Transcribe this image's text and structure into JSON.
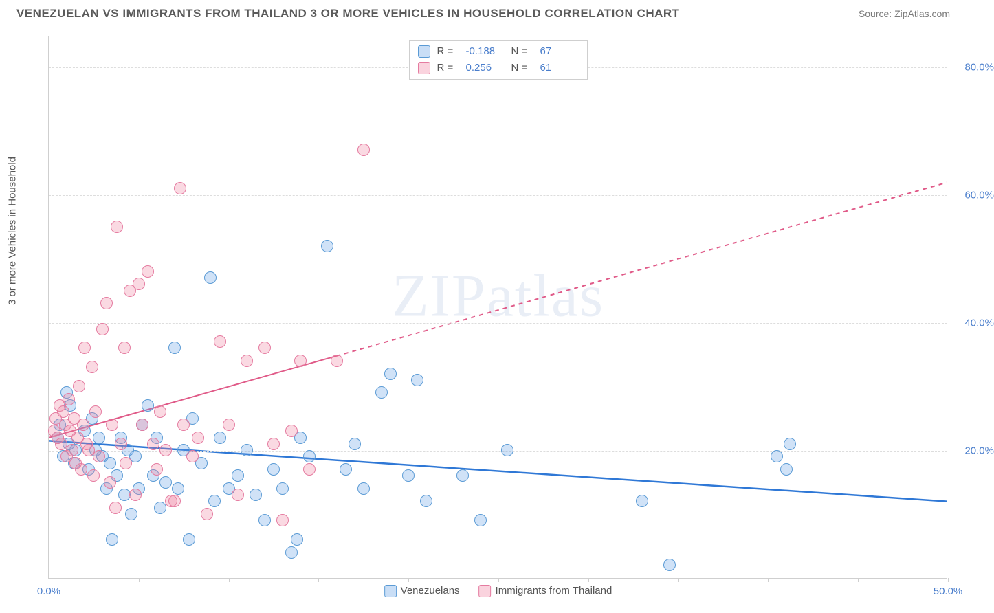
{
  "header": {
    "title": "VENEZUELAN VS IMMIGRANTS FROM THAILAND 3 OR MORE VEHICLES IN HOUSEHOLD CORRELATION CHART",
    "source": "Source: ZipAtlas.com"
  },
  "chart": {
    "type": "scatter",
    "ylabel": "3 or more Vehicles in Household",
    "watermark": "ZIPatlas",
    "background_color": "#ffffff",
    "grid_color": "#dddddd",
    "axis_color": "#cfcfcf",
    "xlim": [
      0,
      50
    ],
    "ylim": [
      0,
      85
    ],
    "xticks": [
      0,
      5,
      10,
      15,
      20,
      25,
      30,
      35,
      40,
      45,
      50
    ],
    "xtick_labels": {
      "0": "0.0%",
      "50": "50.0%"
    },
    "yticks": [
      20,
      40,
      60,
      80
    ],
    "ytick_labels": [
      "20.0%",
      "40.0%",
      "60.0%",
      "80.0%"
    ],
    "tick_color": "#4a7ecc",
    "label_fontsize": 15,
    "marker_radius": 9,
    "legend_top": {
      "rows": [
        {
          "swatch_fill": "rgba(100,160,230,0.35)",
          "swatch_border": "#5b9bd5",
          "r_label": "R =",
          "r_value": "-0.188",
          "n_label": "N =",
          "n_value": "67"
        },
        {
          "swatch_fill": "rgba(240,130,160,0.35)",
          "swatch_border": "#e57ba0",
          "r_label": "R =",
          "r_value": "0.256",
          "n_label": "N =",
          "n_value": "61"
        }
      ]
    },
    "legend_bottom": [
      {
        "swatch_fill": "rgba(100,160,230,0.35)",
        "swatch_border": "#5b9bd5",
        "label": "Venezuelans"
      },
      {
        "swatch_fill": "rgba(240,130,160,0.35)",
        "swatch_border": "#e57ba0",
        "label": "Immigrants from Thailand"
      }
    ],
    "series": [
      {
        "name": "Venezuelans",
        "color_fill": "rgba(100,160,230,0.30)",
        "color_border": "#5b9bd5",
        "trend": {
          "x1": 0,
          "y1": 21.5,
          "x2": 50,
          "y2": 12.0,
          "color": "#2f78d6",
          "width": 2.5,
          "dash_from_x": null
        },
        "points": [
          [
            0.5,
            22
          ],
          [
            0.6,
            24
          ],
          [
            0.8,
            19
          ],
          [
            1.0,
            29
          ],
          [
            1.1,
            21
          ],
          [
            1.2,
            27
          ],
          [
            1.4,
            18
          ],
          [
            1.5,
            20
          ],
          [
            2.0,
            23
          ],
          [
            2.2,
            17
          ],
          [
            2.4,
            25
          ],
          [
            2.6,
            20
          ],
          [
            2.8,
            22
          ],
          [
            3.0,
            19
          ],
          [
            3.2,
            14
          ],
          [
            3.4,
            18
          ],
          [
            3.5,
            6
          ],
          [
            3.8,
            16
          ],
          [
            4.0,
            22
          ],
          [
            4.2,
            13
          ],
          [
            4.4,
            20
          ],
          [
            4.6,
            10
          ],
          [
            4.8,
            19
          ],
          [
            5.0,
            14
          ],
          [
            5.2,
            24
          ],
          [
            5.5,
            27
          ],
          [
            5.8,
            16
          ],
          [
            6.0,
            22
          ],
          [
            6.2,
            11
          ],
          [
            6.5,
            15
          ],
          [
            7.0,
            36
          ],
          [
            7.2,
            14
          ],
          [
            7.5,
            20
          ],
          [
            7.8,
            6
          ],
          [
            8.0,
            25
          ],
          [
            8.5,
            18
          ],
          [
            9.0,
            47
          ],
          [
            9.2,
            12
          ],
          [
            9.5,
            22
          ],
          [
            10.0,
            14
          ],
          [
            10.5,
            16
          ],
          [
            11.0,
            20
          ],
          [
            11.5,
            13
          ],
          [
            12.0,
            9
          ],
          [
            12.5,
            17
          ],
          [
            13.0,
            14
          ],
          [
            13.5,
            4
          ],
          [
            14.0,
            22
          ],
          [
            14.5,
            19
          ],
          [
            15.5,
            52
          ],
          [
            16.5,
            17
          ],
          [
            17.0,
            21
          ],
          [
            17.5,
            14
          ],
          [
            18.5,
            29
          ],
          [
            19.0,
            32
          ],
          [
            20.0,
            16
          ],
          [
            20.5,
            31
          ],
          [
            21.0,
            12
          ],
          [
            24.0,
            9
          ],
          [
            25.5,
            20
          ],
          [
            33.0,
            12
          ],
          [
            34.5,
            2
          ],
          [
            40.5,
            19
          ],
          [
            41.0,
            17
          ],
          [
            41.2,
            21
          ],
          [
            23.0,
            16
          ],
          [
            13.8,
            6
          ]
        ]
      },
      {
        "name": "Immigrants from Thailand",
        "color_fill": "rgba(240,130,160,0.30)",
        "color_border": "#e57ba0",
        "trend": {
          "x1": 0,
          "y1": 22.0,
          "x2": 50,
          "y2": 62.0,
          "color": "#e05a88",
          "width": 2,
          "dash_from_x": 16
        },
        "points": [
          [
            0.3,
            23
          ],
          [
            0.4,
            25
          ],
          [
            0.5,
            22
          ],
          [
            0.6,
            27
          ],
          [
            0.7,
            21
          ],
          [
            0.8,
            26
          ],
          [
            0.9,
            24
          ],
          [
            1.0,
            19
          ],
          [
            1.1,
            28
          ],
          [
            1.2,
            23
          ],
          [
            1.3,
            20
          ],
          [
            1.4,
            25
          ],
          [
            1.5,
            18
          ],
          [
            1.6,
            22
          ],
          [
            1.7,
            30
          ],
          [
            1.8,
            17
          ],
          [
            1.9,
            24
          ],
          [
            2.0,
            36
          ],
          [
            2.1,
            21
          ],
          [
            2.2,
            20
          ],
          [
            2.4,
            33
          ],
          [
            2.5,
            16
          ],
          [
            2.6,
            26
          ],
          [
            2.8,
            19
          ],
          [
            3.0,
            39
          ],
          [
            3.2,
            43
          ],
          [
            3.4,
            15
          ],
          [
            3.5,
            24
          ],
          [
            3.7,
            11
          ],
          [
            3.8,
            55
          ],
          [
            4.0,
            21
          ],
          [
            4.2,
            36
          ],
          [
            4.3,
            18
          ],
          [
            4.5,
            45
          ],
          [
            4.8,
            13
          ],
          [
            5.0,
            46
          ],
          [
            5.2,
            24
          ],
          [
            5.5,
            48
          ],
          [
            5.8,
            21
          ],
          [
            6.0,
            17
          ],
          [
            6.2,
            26
          ],
          [
            6.5,
            20
          ],
          [
            7.0,
            12
          ],
          [
            7.3,
            61
          ],
          [
            7.5,
            24
          ],
          [
            8.0,
            19
          ],
          [
            8.3,
            22
          ],
          [
            8.8,
            10
          ],
          [
            9.5,
            37
          ],
          [
            10.0,
            24
          ],
          [
            10.5,
            13
          ],
          [
            11.0,
            34
          ],
          [
            12.0,
            36
          ],
          [
            12.5,
            21
          ],
          [
            13.5,
            23
          ],
          [
            14.0,
            34
          ],
          [
            14.5,
            17
          ],
          [
            16.0,
            34
          ],
          [
            17.5,
            67
          ],
          [
            13.0,
            9
          ],
          [
            6.8,
            12
          ]
        ]
      }
    ]
  }
}
